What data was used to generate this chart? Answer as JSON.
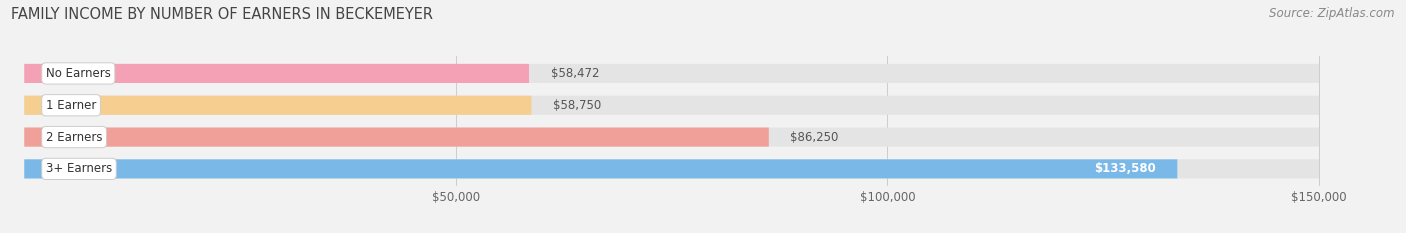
{
  "title": "FAMILY INCOME BY NUMBER OF EARNERS IN BECKEMEYER",
  "source": "Source: ZipAtlas.com",
  "categories": [
    "No Earners",
    "1 Earner",
    "2 Earners",
    "3+ Earners"
  ],
  "values": [
    58472,
    58750,
    86250,
    133580
  ],
  "bar_colors": [
    "#f4a0b5",
    "#f5ce90",
    "#f0a098",
    "#7ab8e8"
  ],
  "label_colors": [
    "#000000",
    "#000000",
    "#000000",
    "#ffffff"
  ],
  "value_labels": [
    "$58,472",
    "$58,750",
    "$86,250",
    "$133,580"
  ],
  "xmin": 0,
  "xmax": 150000,
  "xticks": [
    50000,
    100000,
    150000
  ],
  "xtick_labels": [
    "$50,000",
    "$100,000",
    "$150,000"
  ],
  "background_color": "#f2f2f2",
  "bar_background": "#e4e4e4",
  "title_fontsize": 10.5,
  "source_fontsize": 8.5,
  "label_fontsize": 8.5,
  "value_fontsize": 8.5
}
